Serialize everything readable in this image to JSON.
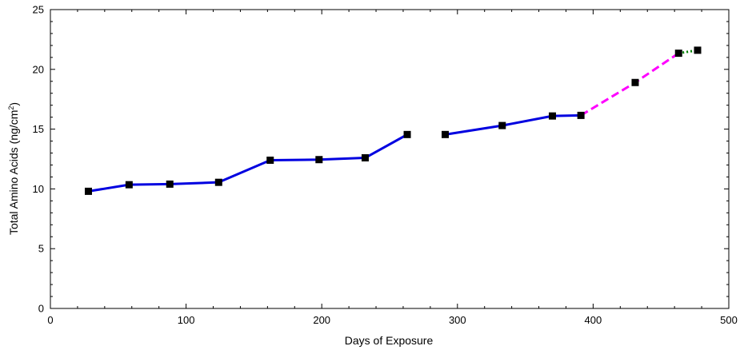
{
  "chart_data": {
    "type": "line",
    "title": "",
    "xlabel": "Days of Exposure",
    "ylabel": "Total Amino Acids (ng/cm²)",
    "ylabel_parts": {
      "before": "Total Amino Acids (ng/cm",
      "superscript": "2",
      "after": ")"
    },
    "xlim": [
      0,
      500
    ],
    "ylim": [
      0,
      25
    ],
    "x_ticks": [
      0,
      100,
      200,
      300,
      400,
      500
    ],
    "y_ticks": [
      0,
      5,
      10,
      15,
      20,
      25
    ],
    "x_minor_step": 20,
    "y_minor_step": 1,
    "grid": false,
    "legend": "none",
    "series": [
      {
        "color": "#0000e0",
        "style": "solid",
        "x": [
          28,
          58,
          88,
          124,
          162,
          198,
          232,
          263
        ],
        "y": [
          9.8,
          10.35,
          10.4,
          10.55,
          12.4,
          12.45,
          12.6,
          14.55
        ]
      },
      {
        "color": "#0000e0",
        "style": "solid",
        "x": [
          291,
          333,
          370,
          391
        ],
        "y": [
          14.55,
          15.3,
          16.1,
          16.15
        ]
      },
      {
        "color": "#ff00ff",
        "style": "dashed",
        "x": [
          391,
          431,
          463
        ],
        "y": [
          16.15,
          18.9,
          21.35
        ]
      },
      {
        "color": "#008000",
        "style": "dotted",
        "x": [
          463,
          477
        ],
        "y": [
          21.35,
          21.6
        ]
      }
    ],
    "markers": {
      "shape": "square",
      "color": "#000000",
      "x": [
        28,
        58,
        88,
        124,
        162,
        198,
        232,
        263,
        291,
        333,
        370,
        391,
        431,
        463,
        477
      ],
      "y": [
        9.8,
        10.35,
        10.4,
        10.55,
        12.4,
        12.45,
        12.6,
        14.55,
        14.55,
        15.3,
        16.1,
        16.15,
        18.9,
        21.35,
        21.6
      ]
    }
  }
}
